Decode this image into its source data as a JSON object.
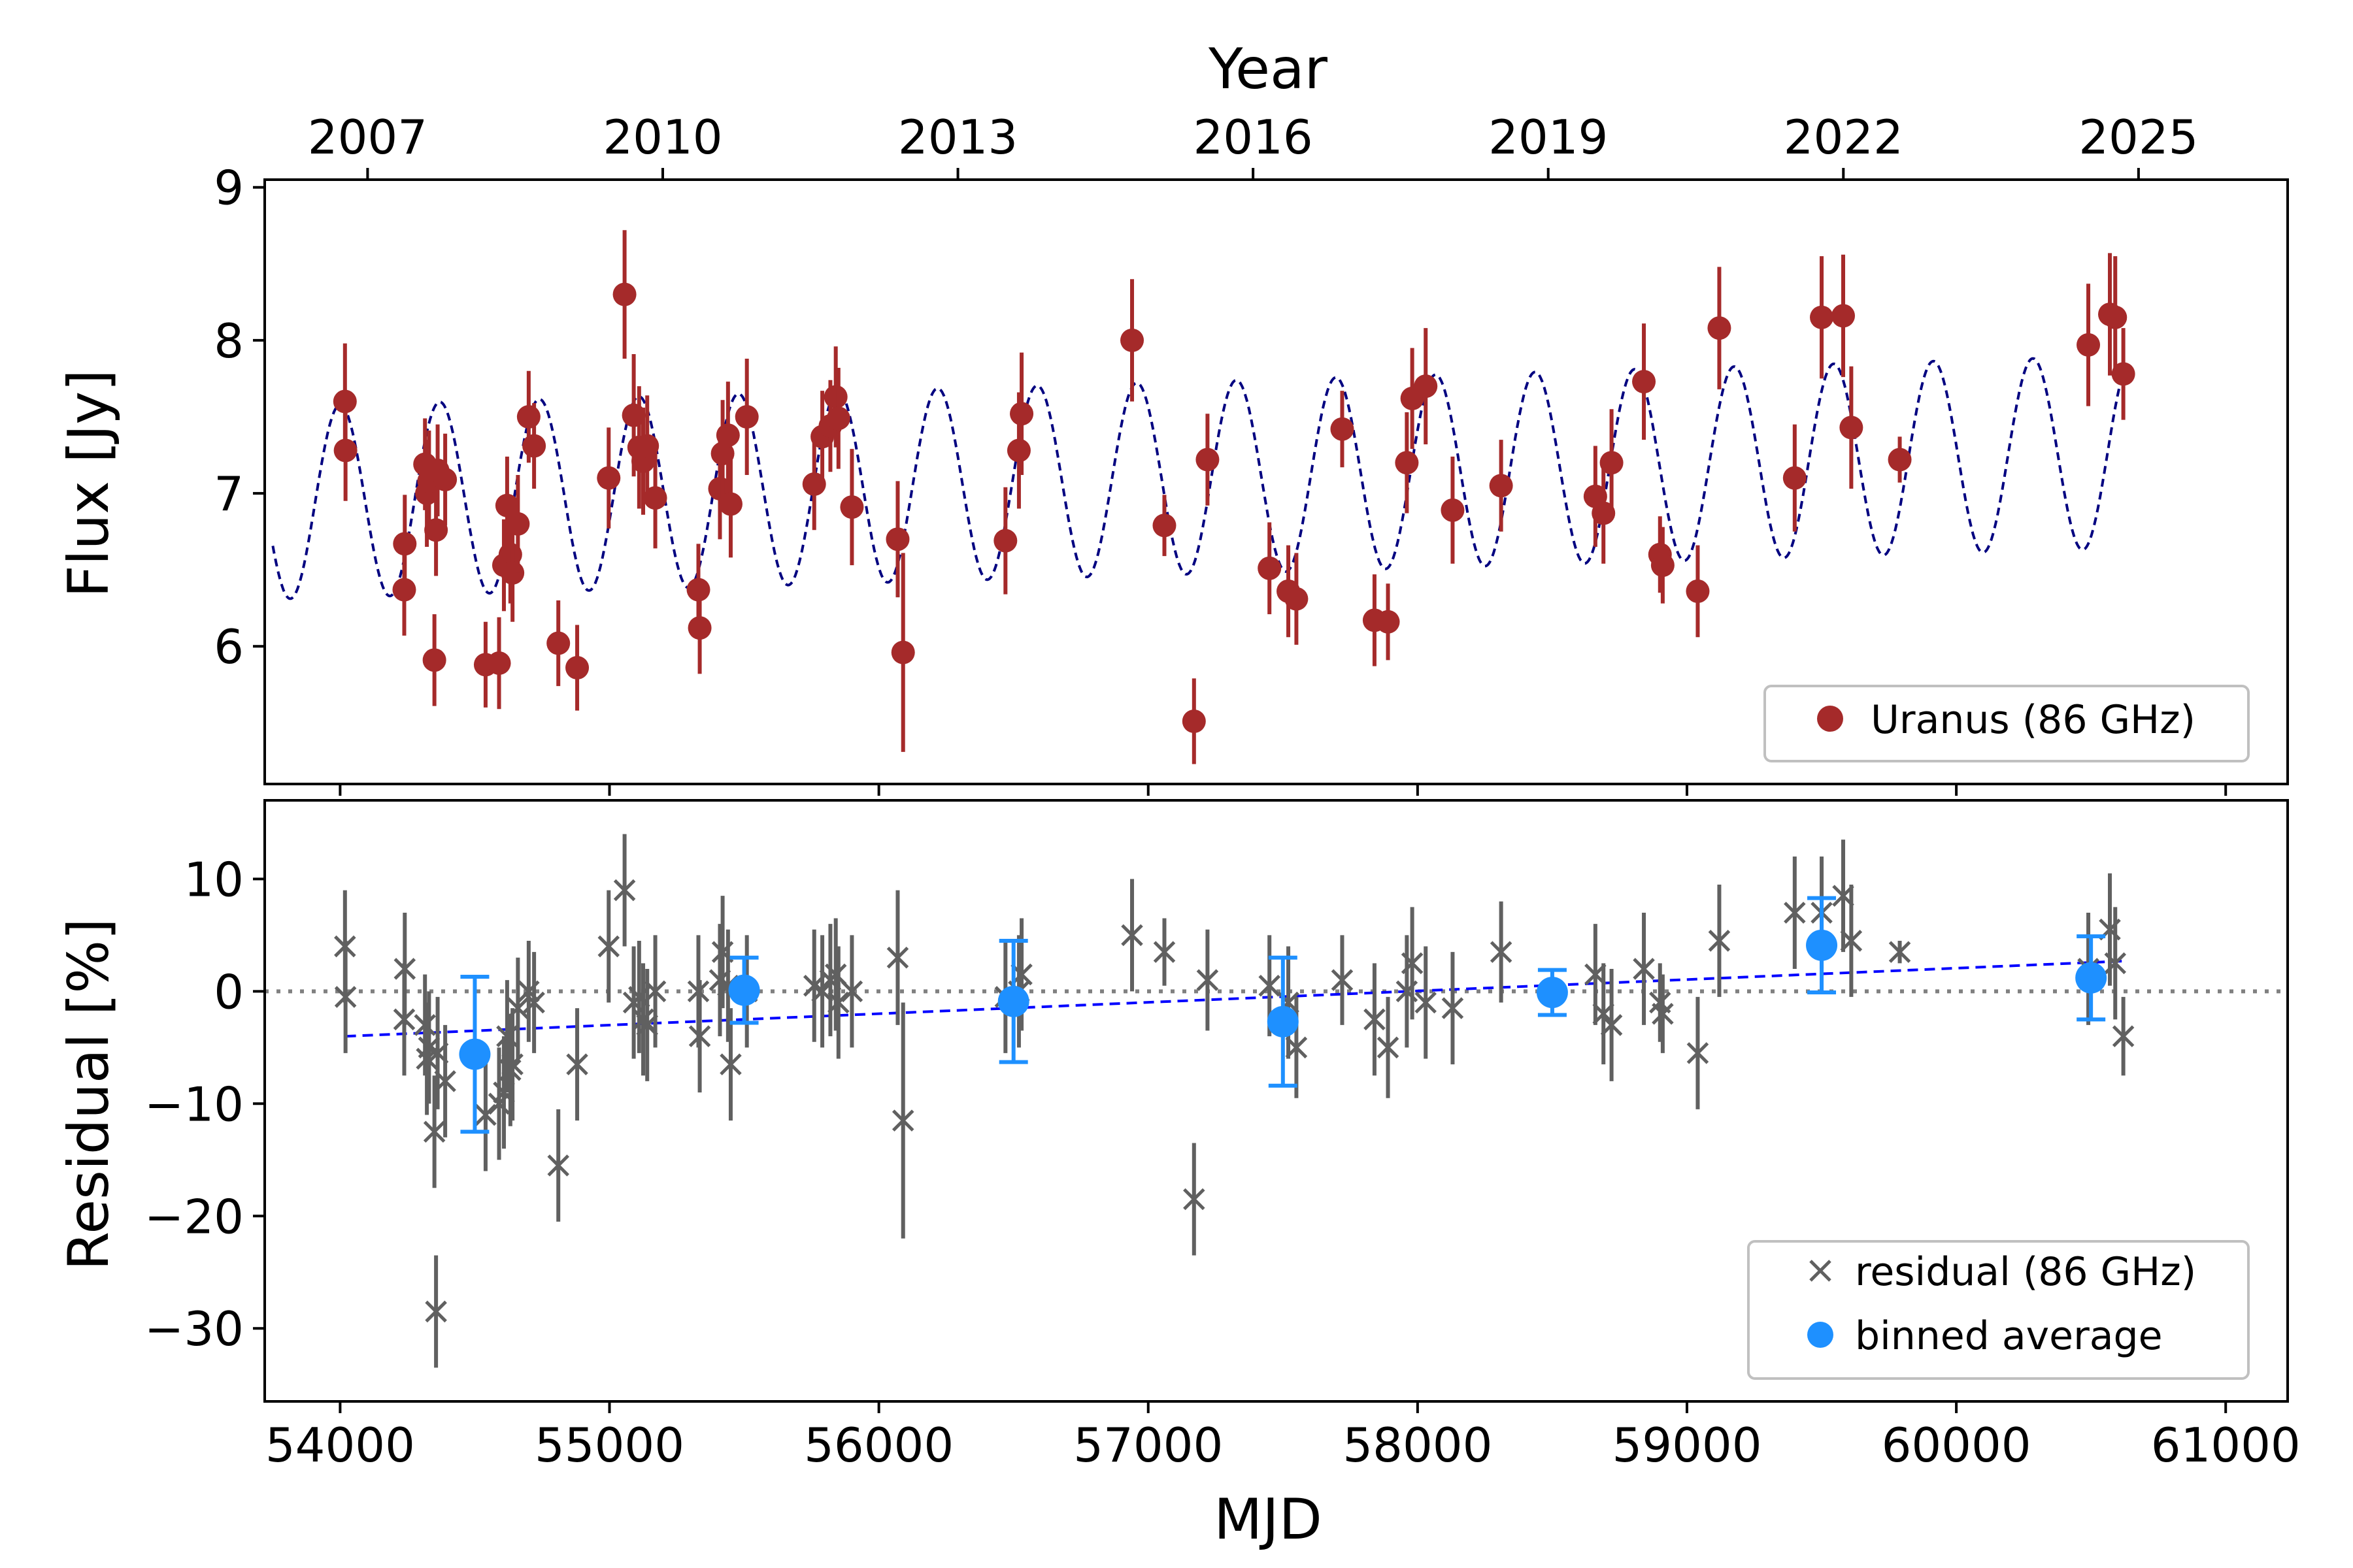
{
  "chart_data": [
    {
      "type": "scatter",
      "panel": "top",
      "top_axis_title": "Year",
      "top_ticks": [
        2007,
        2010,
        2013,
        2016,
        2019,
        2022,
        2025
      ],
      "xlabel": "",
      "ylabel": "Flux [Jy]",
      "xlim": [
        53720,
        61230
      ],
      "ylim": [
        5.1,
        9.05
      ],
      "yticks": [
        6,
        7,
        8,
        9
      ],
      "legend_position": "lower-right",
      "series": [
        {
          "name": "Uranus (86 GHz)",
          "color": "#a52a2a",
          "marker": "circle",
          "points": [
            [
              54018,
              7.6,
              0.38
            ],
            [
              54020,
              7.28,
              0.33
            ],
            [
              54238,
              6.37,
              0.3
            ],
            [
              54240,
              6.67,
              0.32
            ],
            [
              54315,
              7.19,
              0.3
            ],
            [
              54322,
              7.0,
              0.35
            ],
            [
              54330,
              7.08,
              0.33
            ],
            [
              54350,
              5.91,
              0.3
            ],
            [
              54356,
              6.76,
              0.3
            ],
            [
              54362,
              7.15,
              0.3
            ],
            [
              54390,
              7.09,
              0.3
            ],
            [
              54540,
              5.88,
              0.28
            ],
            [
              54590,
              5.89,
              0.3
            ],
            [
              54608,
              6.53,
              0.3
            ],
            [
              54620,
              6.92,
              0.32
            ],
            [
              54632,
              6.6,
              0.32
            ],
            [
              54640,
              6.48,
              0.32
            ],
            [
              54660,
              6.8,
              0.32
            ],
            [
              54700,
              7.5,
              0.3
            ],
            [
              54720,
              7.31,
              0.28
            ],
            [
              54810,
              6.02,
              0.28
            ],
            [
              54880,
              5.86,
              0.28
            ],
            [
              54997,
              7.1,
              0.33
            ],
            [
              55056,
              8.3,
              0.42
            ],
            [
              55090,
              7.51,
              0.4
            ],
            [
              55110,
              7.3,
              0.4
            ],
            [
              55125,
              7.21,
              0.35
            ],
            [
              55140,
              7.31,
              0.33
            ],
            [
              55170,
              6.97,
              0.33
            ],
            [
              55330,
              6.37,
              0.3
            ],
            [
              55335,
              6.12,
              0.3
            ],
            [
              55410,
              7.03,
              0.33
            ],
            [
              55420,
              7.26,
              0.35
            ],
            [
              55440,
              7.38,
              0.35
            ],
            [
              55450,
              6.93,
              0.35
            ],
            [
              55510,
              7.5,
              0.38
            ],
            [
              55760,
              7.06,
              0.3
            ],
            [
              55790,
              7.37,
              0.3
            ],
            [
              55820,
              7.44,
              0.3
            ],
            [
              55840,
              7.63,
              0.33
            ],
            [
              55850,
              7.49,
              0.33
            ],
            [
              55900,
              6.91,
              0.38
            ],
            [
              56070,
              6.7,
              0.38
            ],
            [
              56090,
              5.96,
              0.65
            ],
            [
              56470,
              6.69,
              0.35
            ],
            [
              56520,
              7.28,
              0.38
            ],
            [
              56530,
              7.52,
              0.4
            ],
            [
              56940,
              8.0,
              0.4
            ],
            [
              57060,
              6.79,
              0.2
            ],
            [
              57170,
              5.51,
              0.28
            ],
            [
              57220,
              7.22,
              0.3
            ],
            [
              57450,
              6.51,
              0.3
            ],
            [
              57520,
              6.36,
              0.3
            ],
            [
              57550,
              6.31,
              0.3
            ],
            [
              57720,
              7.42,
              0.25
            ],
            [
              57840,
              6.17,
              0.3
            ],
            [
              57890,
              6.16,
              0.25
            ],
            [
              57960,
              7.2,
              0.33
            ],
            [
              57980,
              7.62,
              0.33
            ],
            [
              58030,
              7.7,
              0.38
            ],
            [
              58130,
              6.89,
              0.35
            ],
            [
              58310,
              7.05,
              0.3
            ],
            [
              58660,
              6.98,
              0.33
            ],
            [
              58690,
              6.87,
              0.33
            ],
            [
              58720,
              7.2,
              0.35
            ],
            [
              58840,
              7.73,
              0.38
            ],
            [
              58900,
              6.6,
              0.25
            ],
            [
              58910,
              6.53,
              0.25
            ],
            [
              59040,
              6.36,
              0.3
            ],
            [
              59120,
              8.08,
              0.4
            ],
            [
              59400,
              7.1,
              0.35
            ],
            [
              59500,
              8.15,
              0.4
            ],
            [
              59580,
              8.16,
              0.4
            ],
            [
              59610,
              7.43,
              0.4
            ],
            [
              59790,
              7.22,
              0.15
            ],
            [
              60490,
              7.97,
              0.4
            ],
            [
              60570,
              8.17,
              0.4
            ],
            [
              60590,
              8.15,
              0.4
            ],
            [
              60620,
              7.78,
              0.3
            ]
          ]
        },
        {
          "name": "",
          "color": "#000080",
          "style": "dashed",
          "model_params": {
            "mean": 6.95,
            "amp": 0.63,
            "period_days": 369.66,
            "phase_mjd": 54000,
            "trend_per_day": 4.8e-05
          }
        }
      ]
    },
    {
      "type": "scatter",
      "panel": "bottom",
      "xlabel": "MJD",
      "ylabel": "Residual [%]",
      "xlim": [
        53720,
        61230
      ],
      "ylim": [
        -36.5,
        17
      ],
      "xticks": [
        54000,
        55000,
        56000,
        57000,
        58000,
        59000,
        60000,
        61000
      ],
      "yticks": [
        10,
        0,
        -10,
        -20,
        -30
      ],
      "ytick_labels": [
        "10",
        "0",
        "−10",
        "−20",
        "−30"
      ],
      "legend_position": "lower-right",
      "series": [
        {
          "name": "residual (86 GHz)",
          "color": "#606060",
          "marker": "x",
          "points": [
            [
              54018,
              4.0,
              5.0
            ],
            [
              54020,
              -0.5,
              5.0
            ],
            [
              54238,
              -2.5,
              5.0
            ],
            [
              54240,
              2.0,
              5.0
            ],
            [
              54315,
              -3.0,
              4.5
            ],
            [
              54322,
              -6.0,
              5.0
            ],
            [
              54330,
              -5.0,
              5.0
            ],
            [
              54350,
              -12.5,
              5.0
            ],
            [
              54356,
              -28.5,
              5.0
            ],
            [
              54362,
              -5.5,
              5.0
            ],
            [
              54390,
              -8.0,
              5.0
            ],
            [
              54540,
              -11.0,
              5.0
            ],
            [
              54590,
              -10.0,
              5.0
            ],
            [
              54608,
              -9.0,
              5.0
            ],
            [
              54620,
              -4.0,
              5.0
            ],
            [
              54632,
              -7.0,
              5.0
            ],
            [
              54640,
              -6.5,
              5.0
            ],
            [
              54660,
              -1.5,
              4.5
            ],
            [
              54700,
              0.0,
              4.5
            ],
            [
              54720,
              -1.0,
              4.5
            ],
            [
              54810,
              -15.5,
              5.0
            ],
            [
              54880,
              -6.5,
              5.0
            ],
            [
              54997,
              4.0,
              5.0
            ],
            [
              55056,
              9.0,
              5.0
            ],
            [
              55090,
              -1.0,
              5.0
            ],
            [
              55110,
              -0.5,
              5.0
            ],
            [
              55125,
              -2.5,
              5.0
            ],
            [
              55140,
              -3.0,
              5.0
            ],
            [
              55170,
              0.0,
              5.0
            ],
            [
              55330,
              0.0,
              5.0
            ],
            [
              55335,
              -4.0,
              5.0
            ],
            [
              55410,
              1.0,
              5.0
            ],
            [
              55420,
              3.5,
              5.0
            ],
            [
              55440,
              0.5,
              5.0
            ],
            [
              55450,
              -6.5,
              5.0
            ],
            [
              55510,
              0.0,
              5.0
            ],
            [
              55760,
              0.5,
              5.0
            ],
            [
              55790,
              0.0,
              5.0
            ],
            [
              55820,
              1.0,
              5.0
            ],
            [
              55840,
              1.5,
              5.0
            ],
            [
              55850,
              -1.0,
              5.0
            ],
            [
              55900,
              0.0,
              5.0
            ],
            [
              56070,
              3.0,
              6.0
            ],
            [
              56090,
              -11.5,
              10.5
            ],
            [
              56470,
              -0.5,
              5.0
            ],
            [
              56520,
              0.0,
              5.0
            ],
            [
              56530,
              1.5,
              5.0
            ],
            [
              56940,
              5.0,
              5.0
            ],
            [
              57060,
              3.5,
              3.0
            ],
            [
              57170,
              -18.5,
              5.0
            ],
            [
              57220,
              1.0,
              4.5
            ],
            [
              57450,
              0.5,
              4.5
            ],
            [
              57520,
              -1.0,
              5.0
            ],
            [
              57550,
              -5.0,
              4.5
            ],
            [
              57720,
              1.0,
              4.0
            ],
            [
              57840,
              -2.5,
              5.0
            ],
            [
              57890,
              -5.0,
              4.5
            ],
            [
              57960,
              0.0,
              5.0
            ],
            [
              57980,
              2.5,
              5.0
            ],
            [
              58030,
              -1.0,
              5.0
            ],
            [
              58130,
              -1.5,
              5.0
            ],
            [
              58310,
              3.5,
              4.5
            ],
            [
              58660,
              1.5,
              4.5
            ],
            [
              58690,
              -2.0,
              4.5
            ],
            [
              58720,
              -3.0,
              5.0
            ],
            [
              58840,
              2.0,
              5.0
            ],
            [
              58900,
              -1.0,
              3.5
            ],
            [
              58910,
              -2.0,
              3.5
            ],
            [
              59040,
              -5.5,
              5.0
            ],
            [
              59120,
              4.5,
              5.0
            ],
            [
              59400,
              7.0,
              5.0
            ],
            [
              59500,
              7.0,
              5.0
            ],
            [
              59580,
              8.5,
              5.0
            ],
            [
              59610,
              4.5,
              5.0
            ],
            [
              59790,
              3.5,
              1.0
            ],
            [
              60490,
              2.0,
              5.0
            ],
            [
              60570,
              5.5,
              5.0
            ],
            [
              60590,
              2.5,
              5.0
            ],
            [
              60620,
              -4.0,
              3.5
            ]
          ]
        },
        {
          "name": "binned average",
          "color": "#1e90ff",
          "marker": "circle",
          "points": [
            [
              54500,
              -5.6,
              6.9
            ],
            [
              55500,
              0.1,
              2.9
            ],
            [
              56500,
              -0.9,
              5.4
            ],
            [
              57500,
              -2.7,
              5.7
            ],
            [
              58500,
              -0.1,
              2.0
            ],
            [
              59500,
              4.1,
              4.2
            ],
            [
              60500,
              1.2,
              3.7
            ]
          ]
        },
        {
          "name": "",
          "color": "#0000ff",
          "style": "dashed",
          "line": [
            [
              54020,
              -4.0
            ],
            [
              60630,
              2.7
            ]
          ]
        },
        {
          "name": "",
          "color": "#808080",
          "style": "dotted",
          "hline": 0
        }
      ]
    }
  ]
}
